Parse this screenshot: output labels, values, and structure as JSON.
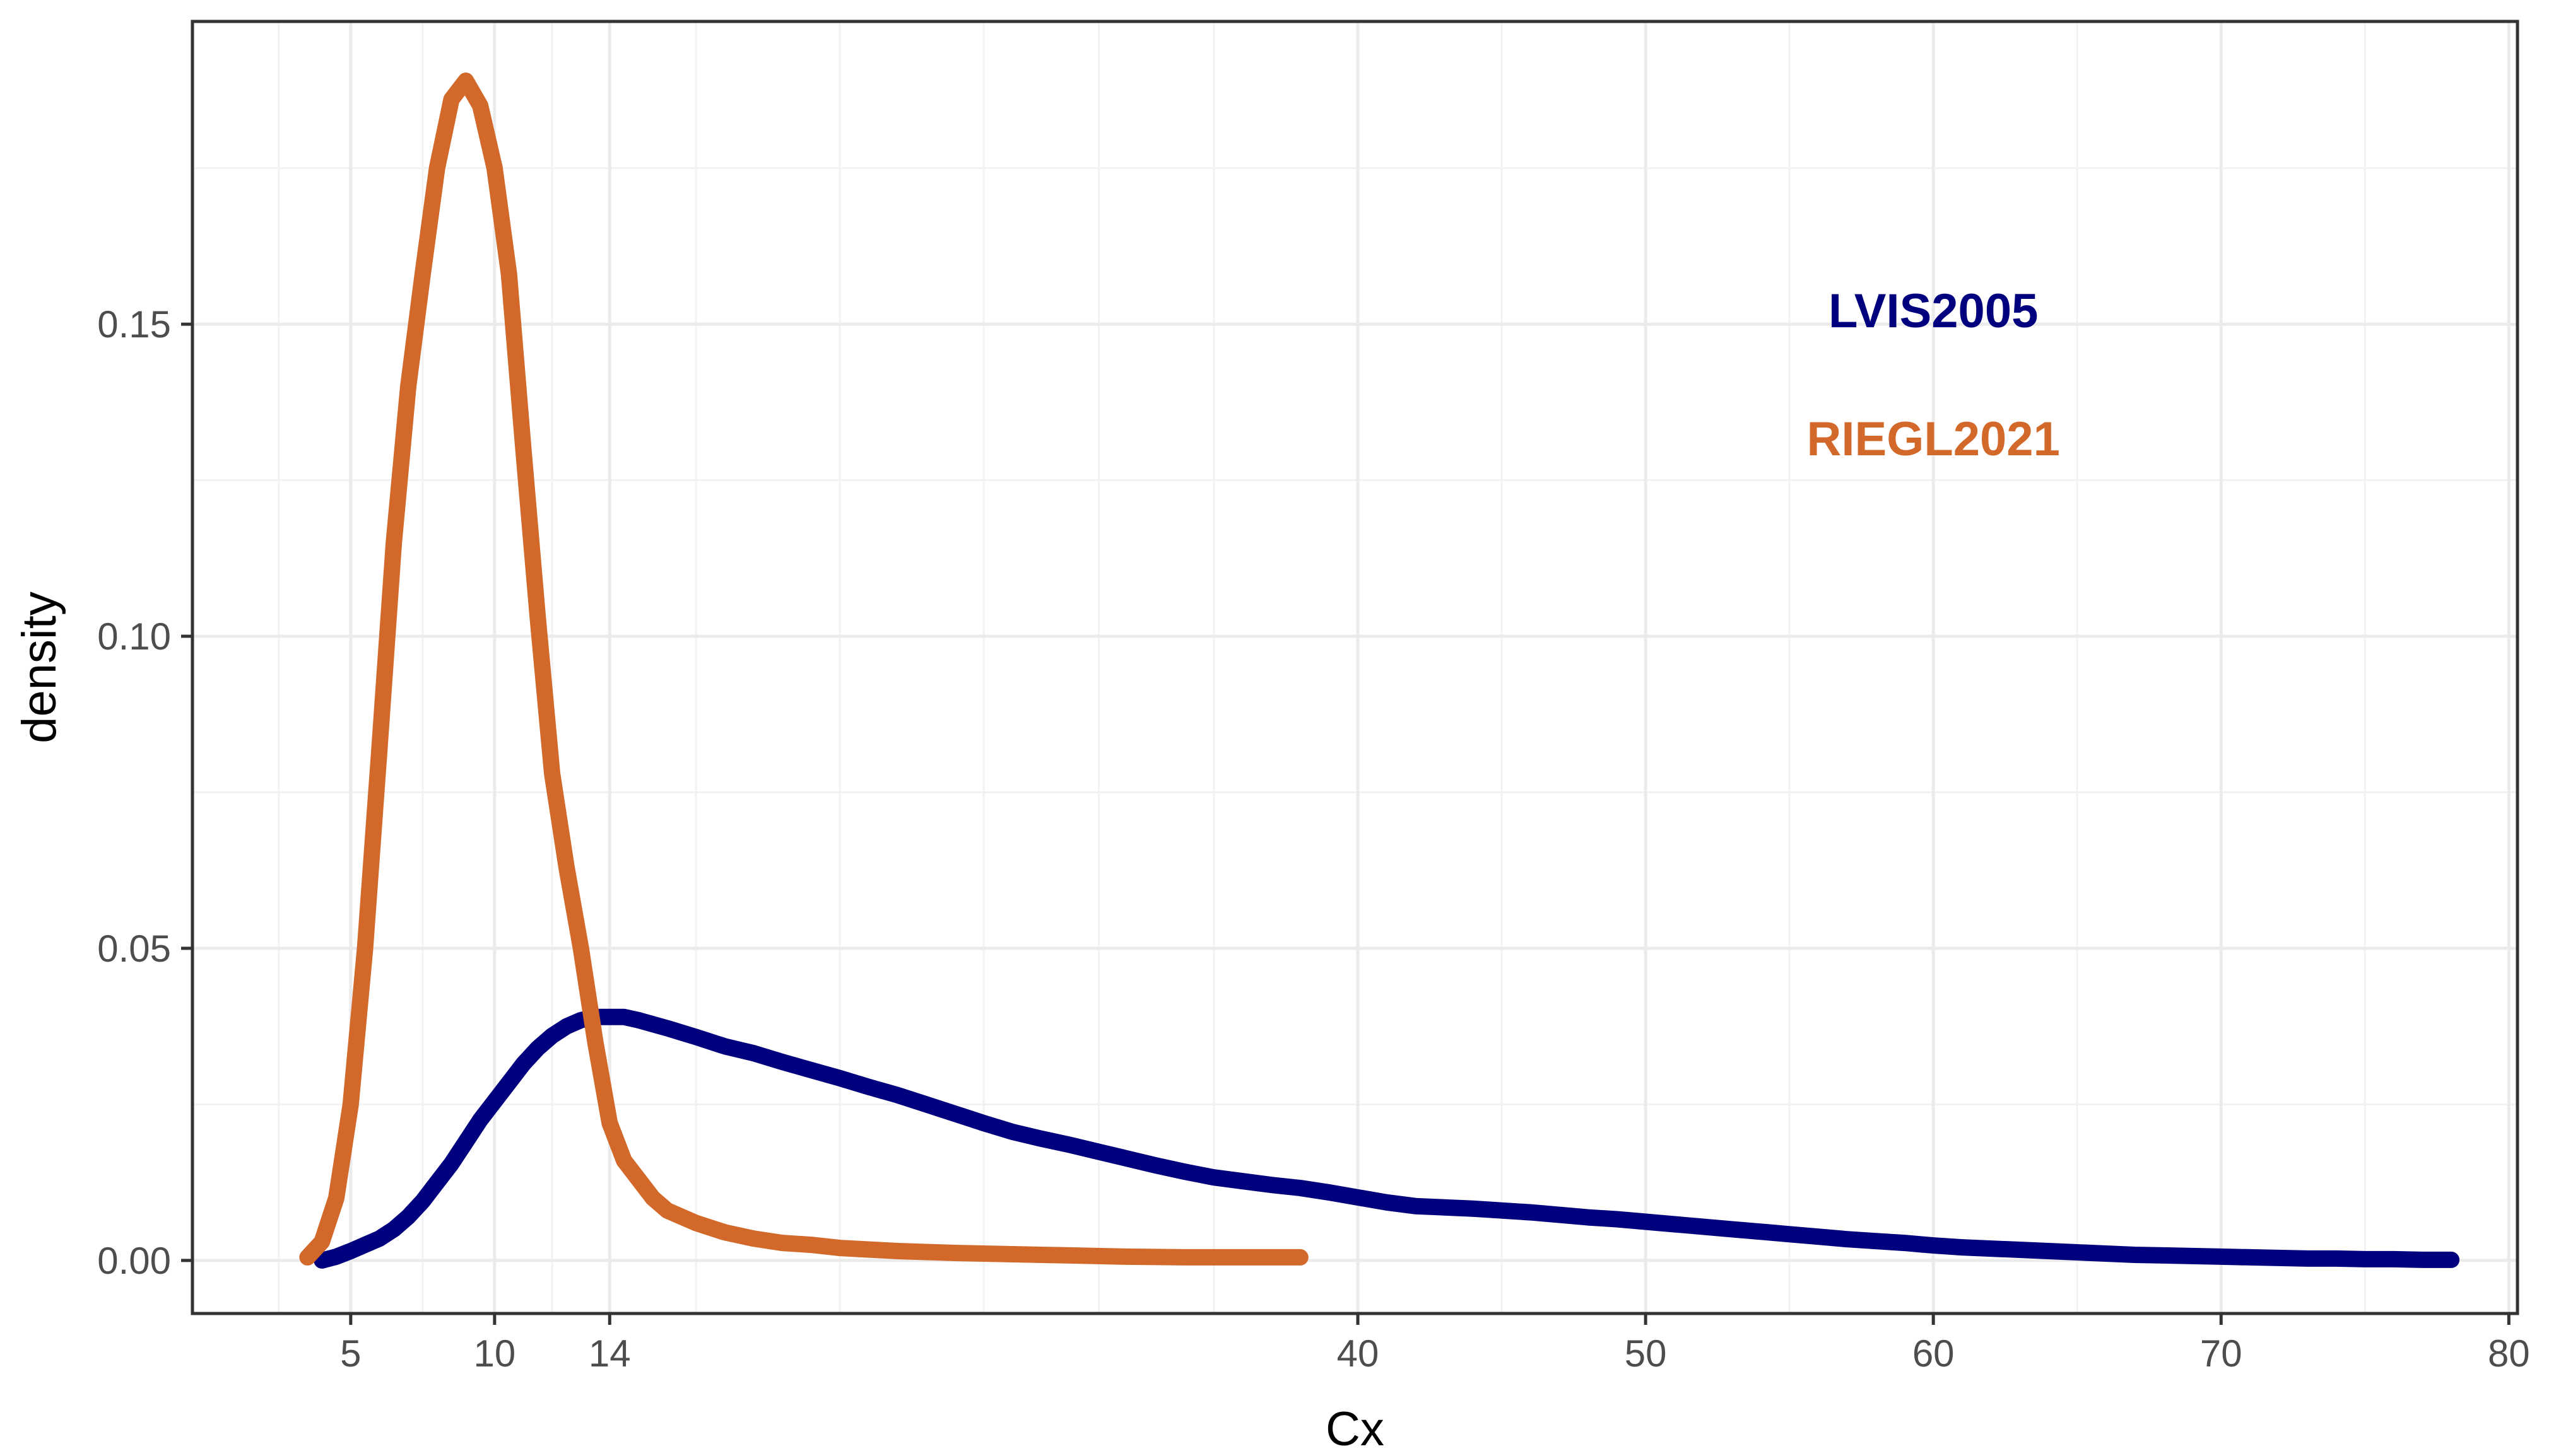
{
  "chart_data": {
    "type": "line",
    "xlabel": "Cx",
    "ylabel": "density",
    "xlim": [
      -0.5,
      80.3
    ],
    "ylim": [
      -0.0085,
      0.1985
    ],
    "x_ticks": [
      {
        "value": 5,
        "label": "5"
      },
      {
        "value": 10,
        "label": "10"
      },
      {
        "value": 14,
        "label": "14"
      },
      {
        "value": 40,
        "label": "40"
      },
      {
        "value": 50,
        "label": "50"
      },
      {
        "value": 60,
        "label": "60"
      },
      {
        "value": 70,
        "label": "70"
      },
      {
        "value": 80,
        "label": "80"
      }
    ],
    "x_minor_grid": [
      2.5,
      7.5,
      12,
      17,
      22,
      27,
      31,
      35,
      45,
      55,
      65,
      75
    ],
    "y_ticks": [
      {
        "value": 0.0,
        "label": "0.00"
      },
      {
        "value": 0.05,
        "label": "0.05"
      },
      {
        "value": 0.1,
        "label": "0.10"
      },
      {
        "value": 0.15,
        "label": "0.15"
      }
    ],
    "y_minor_grid": [
      0.025,
      0.075,
      0.125,
      0.175
    ],
    "grid": true,
    "legend": "in-plot text labels, upper right",
    "series": [
      {
        "name": "LVIS2005",
        "color": "#00007f",
        "x": [
          4,
          4.5,
          5,
          5.5,
          6,
          6.5,
          7,
          7.5,
          8,
          8.5,
          9,
          9.5,
          10,
          10.5,
          11,
          11.5,
          12,
          12.5,
          13,
          13.5,
          14,
          14.5,
          15,
          16,
          17,
          18,
          19,
          20,
          21,
          22,
          23,
          24,
          25,
          26,
          27,
          28,
          29,
          30,
          31,
          32,
          33,
          34,
          35,
          36,
          37,
          38,
          39,
          40,
          41,
          42,
          43,
          44,
          45,
          46,
          47,
          48,
          49,
          50,
          51,
          52,
          53,
          54,
          55,
          56,
          57,
          58,
          59,
          60,
          61,
          62,
          63,
          64,
          65,
          66,
          67,
          68,
          69,
          70,
          71,
          72,
          73,
          74,
          75,
          76,
          77,
          78
        ],
        "y": [
          0.0,
          0.0006,
          0.0015,
          0.0025,
          0.0035,
          0.005,
          0.007,
          0.0095,
          0.0125,
          0.0155,
          0.019,
          0.0225,
          0.0255,
          0.0285,
          0.0315,
          0.034,
          0.036,
          0.0375,
          0.0385,
          0.039,
          0.039,
          0.039,
          0.0385,
          0.0372,
          0.0358,
          0.0343,
          0.0332,
          0.0318,
          0.0305,
          0.0292,
          0.0278,
          0.0265,
          0.025,
          0.0235,
          0.022,
          0.0206,
          0.0195,
          0.0185,
          0.0174,
          0.0163,
          0.0152,
          0.0142,
          0.0133,
          0.0127,
          0.0121,
          0.0116,
          0.0109,
          0.0101,
          0.0093,
          0.0087,
          0.0085,
          0.0083,
          0.008,
          0.0077,
          0.0073,
          0.0069,
          0.0066,
          0.0062,
          0.0058,
          0.0054,
          0.005,
          0.0046,
          0.0042,
          0.0038,
          0.0034,
          0.0031,
          0.0028,
          0.0024,
          0.0021,
          0.0019,
          0.0017,
          0.0015,
          0.0013,
          0.0011,
          0.0009,
          0.0008,
          0.0007,
          0.0006,
          0.0005,
          0.0004,
          0.0003,
          0.0003,
          0.0002,
          0.0002,
          0.0001,
          0.0001
        ]
      },
      {
        "name": "RIEGL2021",
        "color": "#d2692a",
        "x": [
          3.5,
          4,
          4.5,
          5,
          5.5,
          6,
          6.5,
          7,
          7.5,
          8,
          8.5,
          9,
          9.5,
          10,
          10.5,
          11,
          11.5,
          12,
          12.5,
          13,
          13.5,
          14,
          14.5,
          15,
          15.5,
          16,
          17,
          18,
          19,
          20,
          21,
          22,
          24,
          26,
          28,
          30,
          32,
          34,
          36,
          38
        ],
        "y": [
          0.0005,
          0.003,
          0.01,
          0.025,
          0.05,
          0.082,
          0.115,
          0.14,
          0.158,
          0.175,
          0.186,
          0.189,
          0.185,
          0.175,
          0.158,
          0.13,
          0.103,
          0.078,
          0.063,
          0.05,
          0.035,
          0.022,
          0.016,
          0.013,
          0.01,
          0.008,
          0.006,
          0.0045,
          0.0035,
          0.0028,
          0.0025,
          0.002,
          0.0015,
          0.0012,
          0.001,
          0.0008,
          0.0006,
          0.0005,
          0.0005,
          0.0005
        ]
      }
    ],
    "annotations": [
      {
        "text": "LVIS2005",
        "x": 60,
        "y": 0.1495,
        "color": "#00007f"
      },
      {
        "text": "RIEGL2021",
        "x": 60,
        "y": 0.129,
        "color": "#d2692a"
      }
    ]
  }
}
